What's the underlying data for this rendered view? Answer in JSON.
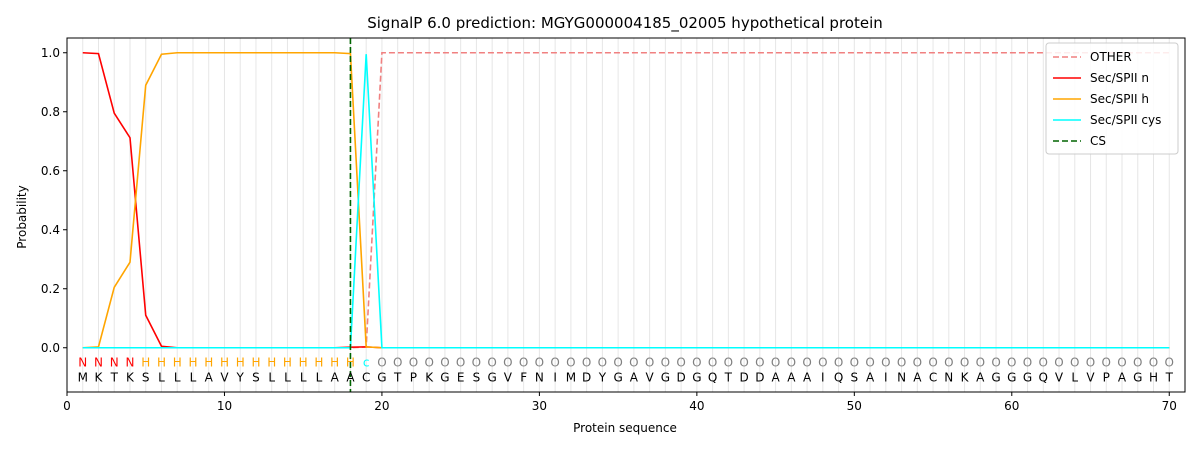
{
  "chart_data": {
    "type": "line",
    "title": "SignalP 6.0 prediction: MGYG000004185_02005 hypothetical protein",
    "xlabel": "Protein sequence",
    "ylabel": "Probability",
    "xlim": [
      0,
      71
    ],
    "ylim": [
      -0.15,
      1.05
    ],
    "xticks": [
      0,
      10,
      20,
      30,
      40,
      50,
      60,
      70
    ],
    "yticks": [
      0.0,
      0.2,
      0.4,
      0.6,
      0.8,
      1.0
    ],
    "grid": "vertical lines at each residue",
    "legend_position": "top-right",
    "sequence": [
      "M",
      "K",
      "T",
      "K",
      "S",
      "L",
      "L",
      "L",
      "A",
      "V",
      "Y",
      "S",
      "L",
      "L",
      "L",
      "L",
      "A",
      "A",
      "C",
      "G",
      "T",
      "P",
      "K",
      "G",
      "E",
      "S",
      "G",
      "V",
      "F",
      "N",
      "I",
      "M",
      "D",
      "Y",
      "G",
      "A",
      "V",
      "G",
      "D",
      "G",
      "Q",
      "T",
      "D",
      "D",
      "A",
      "A",
      "A",
      "I",
      "Q",
      "S",
      "A",
      "I",
      "N",
      "A",
      "C",
      "N",
      "K",
      "A",
      "G",
      "G",
      "G",
      "Q",
      "V",
      "L",
      "V",
      "P",
      "A",
      "G",
      "H",
      "T"
    ],
    "region_labels": [
      "N",
      "N",
      "N",
      "N",
      "H",
      "H",
      "H",
      "H",
      "H",
      "H",
      "H",
      "H",
      "H",
      "H",
      "H",
      "H",
      "H",
      "H",
      "c",
      "O",
      "O",
      "O",
      "O",
      "O",
      "O",
      "O",
      "O",
      "O",
      "O",
      "O",
      "O",
      "O",
      "O",
      "O",
      "O",
      "O",
      "O",
      "O",
      "O",
      "O",
      "O",
      "O",
      "O",
      "O",
      "O",
      "O",
      "O",
      "O",
      "O",
      "O",
      "O",
      "O",
      "O",
      "O",
      "O",
      "O",
      "O",
      "O",
      "O",
      "O",
      "O",
      "O",
      "O",
      "O",
      "O",
      "O",
      "O",
      "O",
      "O",
      "O"
    ],
    "region_colors": {
      "N": "#ff0000",
      "H": "#ffa500",
      "c": "#00ffff",
      "O": "#808080"
    },
    "cs_position": 18,
    "series": [
      {
        "name": "OTHER",
        "color": "#f08080",
        "dash": "dashed",
        "values": [
          0,
          0,
          0,
          0,
          0,
          0,
          0,
          0,
          0,
          0,
          0,
          0,
          0,
          0,
          0,
          0,
          0,
          0,
          0.003,
          1,
          1,
          1,
          1,
          1,
          1,
          1,
          1,
          1,
          1,
          1,
          1,
          1,
          1,
          1,
          1,
          1,
          1,
          1,
          1,
          1,
          1,
          1,
          1,
          1,
          1,
          1,
          1,
          1,
          1,
          1,
          1,
          1,
          1,
          1,
          1,
          1,
          1,
          1,
          1,
          1,
          1,
          1,
          1,
          1,
          1,
          1,
          1,
          1,
          1,
          1
        ]
      },
      {
        "name": "Sec/SPII n",
        "color": "#ff0000",
        "dash": "solid",
        "values": [
          1.0,
          0.997,
          0.795,
          0.712,
          0.11,
          0.005,
          0,
          0,
          0,
          0,
          0,
          0,
          0,
          0,
          0,
          0,
          0,
          0.002,
          0.003,
          0,
          0,
          0,
          0,
          0,
          0,
          0,
          0,
          0,
          0,
          0,
          0,
          0,
          0,
          0,
          0,
          0,
          0,
          0,
          0,
          0,
          0,
          0,
          0,
          0,
          0,
          0,
          0,
          0,
          0,
          0,
          0,
          0,
          0,
          0,
          0,
          0,
          0,
          0,
          0,
          0,
          0,
          0,
          0,
          0,
          0,
          0,
          0,
          0,
          0,
          0
        ]
      },
      {
        "name": "Sec/SPII h",
        "color": "#ffa500",
        "dash": "solid",
        "values": [
          0,
          0.003,
          0.205,
          0.29,
          0.89,
          0.995,
          1.0,
          1.0,
          1.0,
          1.0,
          1.0,
          1.0,
          1.0,
          1.0,
          1.0,
          1.0,
          1.0,
          0.997,
          0.003,
          0,
          0,
          0,
          0,
          0,
          0,
          0,
          0,
          0,
          0,
          0,
          0,
          0,
          0,
          0,
          0,
          0,
          0,
          0,
          0,
          0,
          0,
          0,
          0,
          0,
          0,
          0,
          0,
          0,
          0,
          0,
          0,
          0,
          0,
          0,
          0,
          0,
          0,
          0,
          0,
          0,
          0,
          0,
          0,
          0,
          0,
          0,
          0,
          0,
          0,
          0
        ]
      },
      {
        "name": "Sec/SPII cys",
        "color": "#00ffff",
        "dash": "solid",
        "values": [
          0,
          0,
          0,
          0,
          0,
          0,
          0,
          0,
          0,
          0,
          0,
          0,
          0,
          0,
          0,
          0,
          0,
          0,
          0.995,
          0,
          0,
          0,
          0,
          0,
          0,
          0,
          0,
          0,
          0,
          0,
          0,
          0,
          0,
          0,
          0,
          0,
          0,
          0,
          0,
          0,
          0,
          0,
          0,
          0,
          0,
          0,
          0,
          0,
          0,
          0,
          0,
          0,
          0,
          0,
          0,
          0,
          0,
          0,
          0,
          0,
          0,
          0,
          0,
          0,
          0,
          0,
          0,
          0,
          0,
          0
        ]
      }
    ],
    "cs_legend": {
      "name": "CS",
      "color": "#006400",
      "dash": "dashed"
    }
  }
}
